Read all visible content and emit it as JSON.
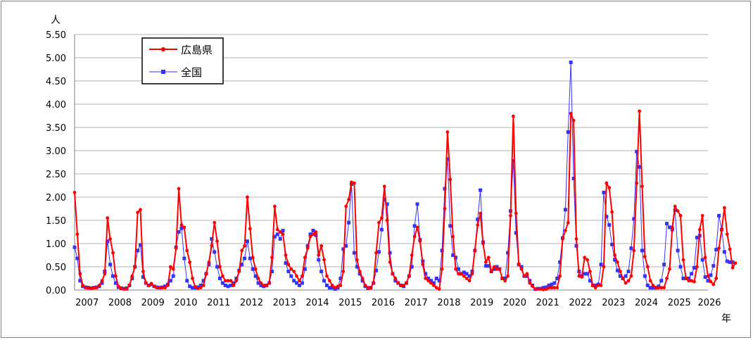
{
  "chart_data": {
    "type": "line",
    "ylabel": "人",
    "xlabel": "年",
    "ylim": [
      0,
      5.5
    ],
    "yticks": [
      "0.00",
      "0.50",
      "1.00",
      "1.50",
      "2.00",
      "2.50",
      "3.00",
      "3.50",
      "4.00",
      "4.50",
      "5.00",
      "5.50"
    ],
    "xlim": [
      2006.75,
      2026.0
    ],
    "xticks": [
      "2007",
      "2008",
      "2009",
      "2010",
      "2011",
      "2012",
      "2013",
      "2014",
      "2015",
      "2016",
      "2017",
      "2018",
      "2019",
      "2020",
      "2021",
      "2022",
      "2023",
      "2024",
      "2025",
      "2026"
    ],
    "grid": "horizontal",
    "legend_position": "top-left",
    "series": [
      {
        "name": "広島県",
        "color": "#ff0000",
        "marker": "circle",
        "start_year": 2006.75,
        "step_years": 0.0833333,
        "values": [
          2.1,
          1.2,
          0.35,
          0.1,
          0.05,
          0.05,
          0.04,
          0.05,
          0.05,
          0.1,
          0.2,
          0.35,
          1.55,
          1.1,
          0.8,
          0.3,
          0.08,
          0.03,
          0.02,
          0.02,
          0.1,
          0.3,
          0.5,
          1.67,
          1.73,
          0.4,
          0.15,
          0.1,
          0.14,
          0.08,
          0.05,
          0.05,
          0.05,
          0.05,
          0.1,
          0.5,
          0.45,
          0.9,
          2.18,
          1.4,
          1.35,
          0.85,
          0.6,
          0.25,
          0.07,
          0.04,
          0.05,
          0.1,
          0.35,
          0.6,
          0.95,
          1.45,
          1.05,
          0.5,
          0.3,
          0.2,
          0.2,
          0.2,
          0.1,
          0.2,
          0.4,
          0.85,
          0.95,
          2.0,
          1.32,
          0.7,
          0.45,
          0.25,
          0.15,
          0.1,
          0.1,
          0.15,
          0.7,
          1.8,
          1.3,
          1.25,
          1.2,
          0.75,
          0.55,
          0.45,
          0.4,
          0.3,
          0.2,
          0.3,
          0.7,
          0.9,
          1.15,
          1.2,
          1.25,
          0.75,
          0.95,
          0.65,
          0.3,
          0.2,
          0.1,
          0.05,
          0.08,
          0.1,
          0.4,
          1.8,
          1.95,
          2.32,
          2.3,
          0.65,
          0.4,
          0.25,
          0.1,
          0.05,
          0.05,
          0.15,
          0.8,
          1.45,
          1.55,
          2.23,
          1.5,
          0.6,
          0.35,
          0.25,
          0.15,
          0.1,
          0.1,
          0.15,
          0.3,
          0.75,
          1.15,
          1.35,
          1.05,
          0.55,
          0.25,
          0.2,
          0.15,
          0.1,
          0.05,
          0.02,
          0.45,
          1.75,
          3.4,
          2.38,
          1.15,
          0.45,
          0.35,
          0.35,
          0.3,
          0.25,
          0.2,
          0.35,
          0.85,
          1.4,
          1.65,
          1.0,
          0.6,
          0.7,
          0.4,
          0.5,
          0.45,
          0.45,
          0.25,
          0.2,
          0.3,
          1.6,
          3.74,
          1.65,
          0.55,
          0.45,
          0.3,
          0.35,
          0.15,
          0.08,
          0.02,
          0.02,
          0.02,
          0.01,
          0.02,
          0.05,
          0.05,
          0.05,
          0.05,
          0.3,
          1.1,
          1.28,
          1.45,
          3.8,
          3.65,
          1.1,
          0.3,
          0.28,
          0.7,
          0.65,
          0.4,
          0.1,
          0.05,
          0.1,
          0.1,
          0.5,
          2.3,
          2.2,
          1.68,
          0.75,
          0.6,
          0.4,
          0.25,
          0.15,
          0.2,
          0.3,
          0.85,
          2.3,
          3.85,
          2.23,
          0.72,
          0.5,
          0.2,
          0.1,
          0.05,
          0.05,
          0.05,
          0.05,
          0.25,
          0.45,
          1.35,
          1.8,
          1.7,
          1.6,
          0.65,
          0.25,
          0.2,
          0.2,
          0.18,
          0.5,
          1.3,
          1.6,
          0.7,
          0.3,
          0.18,
          0.12,
          0.25,
          0.9,
          1.3,
          1.77,
          1.2,
          0.88,
          0.48,
          0.58
        ]
      },
      {
        "name": "全国",
        "color": "#3333ff",
        "marker": "square",
        "start_year": 2006.75,
        "step_years": 0.0833333,
        "values": [
          0.92,
          0.68,
          0.2,
          0.08,
          0.06,
          0.05,
          0.04,
          0.05,
          0.06,
          0.08,
          0.15,
          0.4,
          1.05,
          0.55,
          0.3,
          0.15,
          0.06,
          0.04,
          0.03,
          0.04,
          0.1,
          0.25,
          0.5,
          0.85,
          0.97,
          0.28,
          0.15,
          0.1,
          0.12,
          0.08,
          0.06,
          0.05,
          0.06,
          0.08,
          0.12,
          0.2,
          0.3,
          0.92,
          1.25,
          1.33,
          0.68,
          0.2,
          0.08,
          0.05,
          0.05,
          0.06,
          0.1,
          0.2,
          0.35,
          0.55,
          1.1,
          0.82,
          0.5,
          0.25,
          0.15,
          0.1,
          0.08,
          0.1,
          0.15,
          0.25,
          0.42,
          0.55,
          0.68,
          1.05,
          0.68,
          0.45,
          0.3,
          0.15,
          0.1,
          0.08,
          0.1,
          0.15,
          0.4,
          1.15,
          1.2,
          1.1,
          1.28,
          0.58,
          0.4,
          0.3,
          0.2,
          0.15,
          0.1,
          0.15,
          0.45,
          0.95,
          1.2,
          1.28,
          1.18,
          0.65,
          0.4,
          0.2,
          0.1,
          0.05,
          0.05,
          0.02,
          0.05,
          0.25,
          0.88,
          0.95,
          1.45,
          2.28,
          0.8,
          0.5,
          0.35,
          0.2,
          0.08,
          0.04,
          0.05,
          0.15,
          0.42,
          0.82,
          1.3,
          1.95,
          1.85,
          0.8,
          0.35,
          0.2,
          0.15,
          0.1,
          0.08,
          0.15,
          0.3,
          0.5,
          1.38,
          1.85,
          1.08,
          0.62,
          0.35,
          0.25,
          0.2,
          0.15,
          0.25,
          0.2,
          0.85,
          2.18,
          2.82,
          1.38,
          0.75,
          0.7,
          0.45,
          0.35,
          0.38,
          0.35,
          0.3,
          0.4,
          0.85,
          1.52,
          2.15,
          1.03,
          0.52,
          0.52,
          0.4,
          0.45,
          0.5,
          0.45,
          0.25,
          0.25,
          0.8,
          1.7,
          2.78,
          1.23,
          0.55,
          0.5,
          0.3,
          0.3,
          0.2,
          0.1,
          0.02,
          0.03,
          0.03,
          0.05,
          0.06,
          0.1,
          0.12,
          0.15,
          0.25,
          0.6,
          1.12,
          1.73,
          3.4,
          4.9,
          2.4,
          0.95,
          0.4,
          0.3,
          0.35,
          0.35,
          0.2,
          0.1,
          0.1,
          0.12,
          0.55,
          2.1,
          1.58,
          1.4,
          0.98,
          0.65,
          0.42,
          0.3,
          0.25,
          0.3,
          0.4,
          0.9,
          1.53,
          2.98,
          2.65,
          0.85,
          0.3,
          0.1,
          0.05,
          0.05,
          0.05,
          0.08,
          0.2,
          0.55,
          1.43,
          1.35,
          1.3,
          1.72,
          0.85,
          0.5,
          0.25,
          0.25,
          0.25,
          0.35,
          0.48,
          1.13,
          1.17,
          0.65,
          0.28,
          0.2,
          0.32,
          0.52,
          0.87,
          1.6,
          1.3,
          0.82,
          0.62,
          0.6,
          0.6
        ]
      }
    ]
  }
}
